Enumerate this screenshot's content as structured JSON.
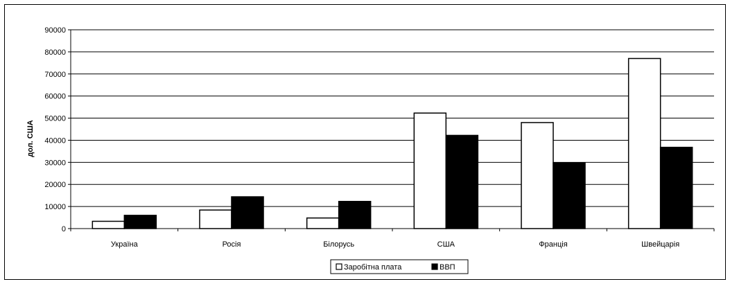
{
  "chart_data": {
    "type": "bar",
    "title": "",
    "xlabel": "",
    "ylabel": "дол. США",
    "ylim": [
      0,
      90000
    ],
    "yticks": [
      0,
      10000,
      20000,
      30000,
      40000,
      50000,
      60000,
      70000,
      80000,
      90000
    ],
    "grid": true,
    "legend_position": "bottom",
    "categories": [
      "Україна",
      "Росія",
      "Білорусь",
      "США",
      "Франція",
      "Швейцарія"
    ],
    "series": [
      {
        "name": "Заробітна плата",
        "color": "#ffffff",
        "values": [
          3300,
          8400,
          4800,
          52300,
          48000,
          77000
        ]
      },
      {
        "name": "ВВП",
        "color": "#000000",
        "values": [
          6000,
          14400,
          12300,
          42200,
          29800,
          36800
        ]
      }
    ]
  }
}
